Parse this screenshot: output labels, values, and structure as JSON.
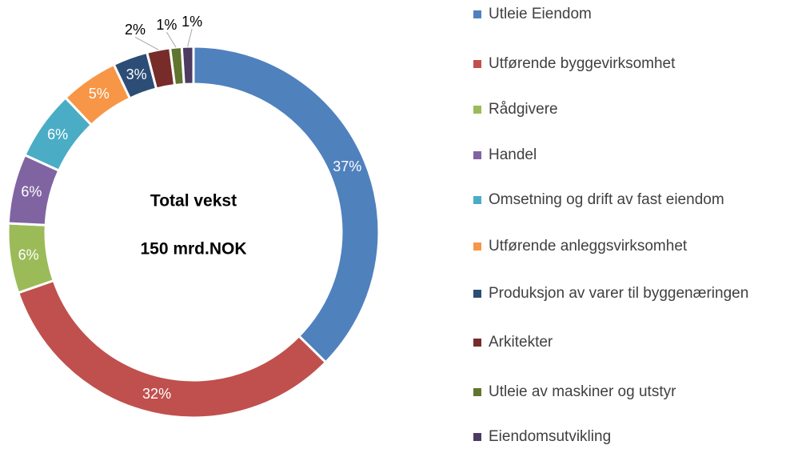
{
  "chart_data": {
    "type": "donut",
    "categories": [
      "Utleie Eiendom",
      "Utførende byggevirksomhet",
      "Rådgivere",
      "Handel",
      "Omsetning og drift av fast eiendom",
      "Utførende anleggsvirksomhet",
      "Produksjon av varer til byggenæringen",
      "Arkitekter",
      "Utleie av maskiner og utstyr",
      "Eiendomsutvikling"
    ],
    "values": [
      37,
      32,
      6,
      6,
      6,
      5,
      3,
      2,
      1,
      1
    ],
    "value_labels": [
      "37%",
      "32%",
      "6%",
      "6%",
      "6%",
      "5%",
      "3%",
      "2%",
      "1%",
      "1%"
    ],
    "colors": [
      "#4f81bd",
      "#c0504d",
      "#9bbb59",
      "#8064a2",
      "#4bacc6",
      "#f79646",
      "#2c4d75",
      "#772c2a",
      "#5f7530",
      "#4d3b62"
    ],
    "annotations": [
      "Total vekst",
      "150 mrd.NOK"
    ]
  }
}
